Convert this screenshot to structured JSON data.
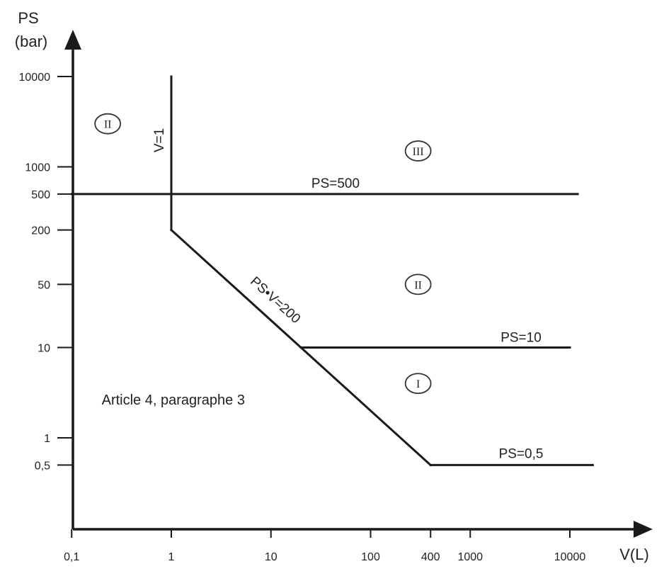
{
  "chart_data": {
    "type": "line",
    "title": "",
    "x_axis": {
      "label": "V(L)",
      "scale": "log",
      "range": [
        0.1,
        40000
      ],
      "ticks": [
        {
          "value": 0.1,
          "label": "0,1"
        },
        {
          "value": 1,
          "label": "1"
        },
        {
          "value": 10,
          "label": "10"
        },
        {
          "value": 100,
          "label": "100"
        },
        {
          "value": 400,
          "label": "400"
        },
        {
          "value": 1000,
          "label": "1000"
        },
        {
          "value": 10000,
          "label": "10000"
        }
      ]
    },
    "y_axis": {
      "label_line1": "PS",
      "label_line2": "(bar)",
      "scale": "log",
      "range": [
        0.1,
        40000
      ],
      "ticks": [
        {
          "value": 0.5,
          "label": "0,5"
        },
        {
          "value": 1,
          "label": "1"
        },
        {
          "value": 10,
          "label": "10"
        },
        {
          "value": 50,
          "label": "50"
        },
        {
          "value": 200,
          "label": "200"
        },
        {
          "value": 500,
          "label": "500"
        },
        {
          "value": 1000,
          "label": "1000"
        },
        {
          "value": 10000,
          "label": "10000"
        }
      ]
    },
    "grid": false,
    "series": [
      {
        "id": "v1",
        "label": "V=1",
        "points": [
          [
            1,
            10000
          ],
          [
            1,
            200
          ]
        ]
      },
      {
        "id": "psv200",
        "label": "PS•V=200",
        "points": [
          [
            1,
            200
          ],
          [
            400,
            0.5
          ]
        ]
      },
      {
        "id": "ps500",
        "label": "PS=500",
        "points": [
          [
            0.1,
            500
          ],
          [
            12000,
            500
          ]
        ]
      },
      {
        "id": "ps10",
        "label": "PS=10",
        "points": [
          [
            20,
            10
          ],
          [
            10000,
            10
          ]
        ]
      },
      {
        "id": "ps05",
        "label": "PS=0,5",
        "points": [
          [
            400,
            0.5
          ],
          [
            17000,
            0.5
          ]
        ]
      }
    ],
    "regions": [
      {
        "label": "II",
        "x": 0.23,
        "y": 3000
      },
      {
        "label": "III",
        "x": 300,
        "y": 1500
      },
      {
        "label": "II",
        "x": 300,
        "y": 50
      },
      {
        "label": "I",
        "x": 300,
        "y": 4
      }
    ],
    "annotations": [
      {
        "text": "Article 4, paragraphe 3",
        "x": 0.2,
        "y": 2.6
      }
    ]
  }
}
